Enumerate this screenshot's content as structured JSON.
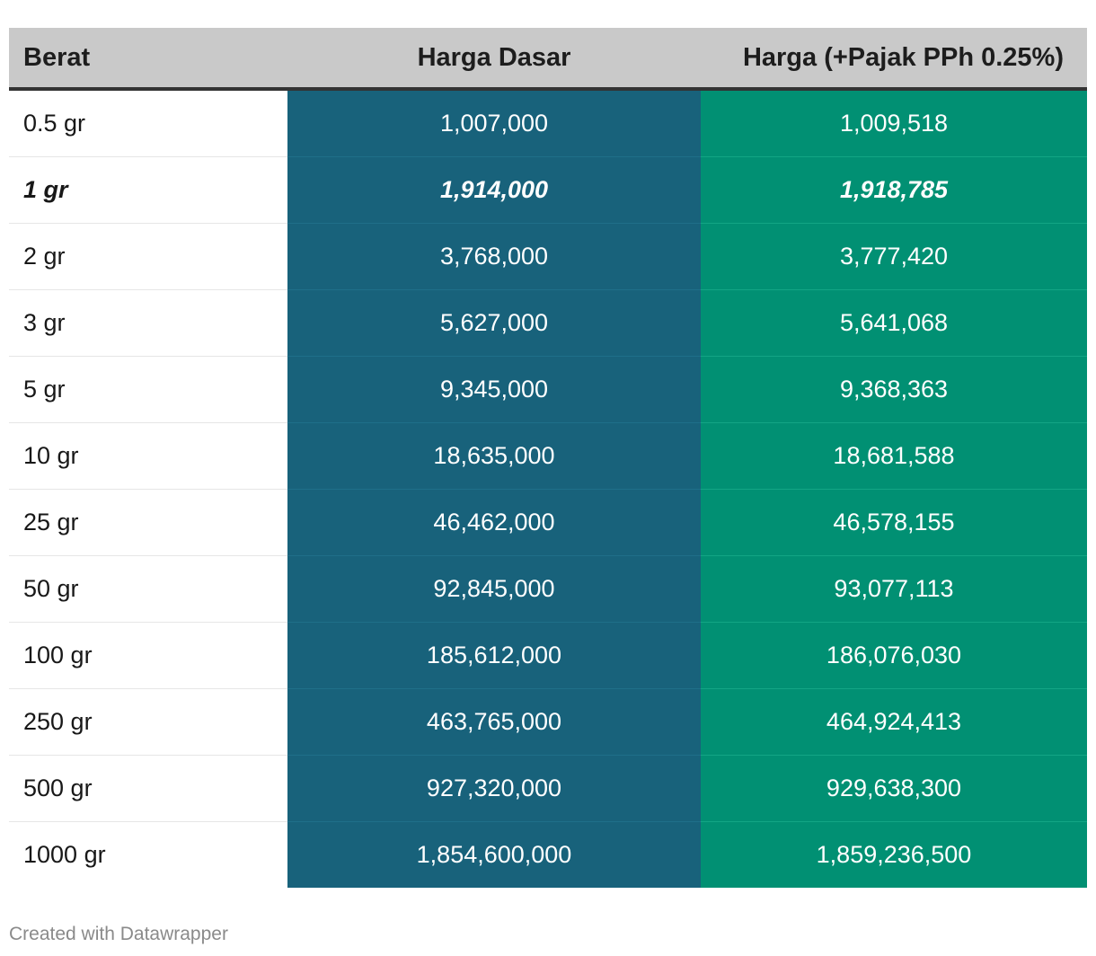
{
  "chart_data": {
    "type": "table",
    "columns": [
      "Berat",
      "Harga Dasar",
      "Harga (+Pajak PPh 0.25%)"
    ],
    "rows": [
      [
        "0.5 gr",
        "1,007,000",
        "1,009,518"
      ],
      [
        "1 gr",
        "1,914,000",
        "1,918,785"
      ],
      [
        "2 gr",
        "3,768,000",
        "3,777,420"
      ],
      [
        "3 gr",
        "5,627,000",
        "5,641,068"
      ],
      [
        "5 gr",
        "9,345,000",
        "9,368,363"
      ],
      [
        "10 gr",
        "18,635,000",
        "18,681,588"
      ],
      [
        "25 gr",
        "46,462,000",
        "46,578,155"
      ],
      [
        "50 gr",
        "92,845,000",
        "93,077,113"
      ],
      [
        "100 gr",
        "185,612,000",
        "186,076,030"
      ],
      [
        "250 gr",
        "463,765,000",
        "464,924,413"
      ],
      [
        "500 gr",
        "927,320,000",
        "929,638,300"
      ],
      [
        "1000 gr",
        "1,854,600,000",
        "1,859,236,500"
      ]
    ],
    "highlighted_row": 1,
    "column_colors": {
      "header_background": "#c9c9c9",
      "harga_dasar": "#18627b",
      "harga_pajak": "#019073"
    }
  },
  "footer": "Created with Datawrapper"
}
